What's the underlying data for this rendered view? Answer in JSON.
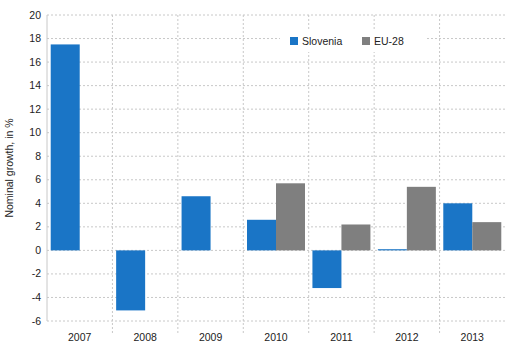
{
  "chart_data": {
    "type": "bar",
    "y_label": "Nominal growth, in %",
    "categories": [
      "2007",
      "2008",
      "2009",
      "2010",
      "2011",
      "2012",
      "2013"
    ],
    "series": [
      {
        "name": "Slovenia",
        "color": "#1a75c6",
        "values": [
          17.5,
          -5.1,
          4.6,
          2.6,
          -3.2,
          0.1,
          4.0
        ]
      },
      {
        "name": "EU-28",
        "color": "#7f7f7f",
        "values": [
          null,
          null,
          null,
          5.7,
          2.2,
          5.4,
          2.4
        ]
      }
    ],
    "ylim": [
      -6,
      20
    ],
    "yticks": [
      -6,
      -4,
      -2,
      0,
      2,
      4,
      6,
      8,
      10,
      12,
      14,
      16,
      18,
      20
    ],
    "grid": true,
    "legend": "upper right"
  }
}
